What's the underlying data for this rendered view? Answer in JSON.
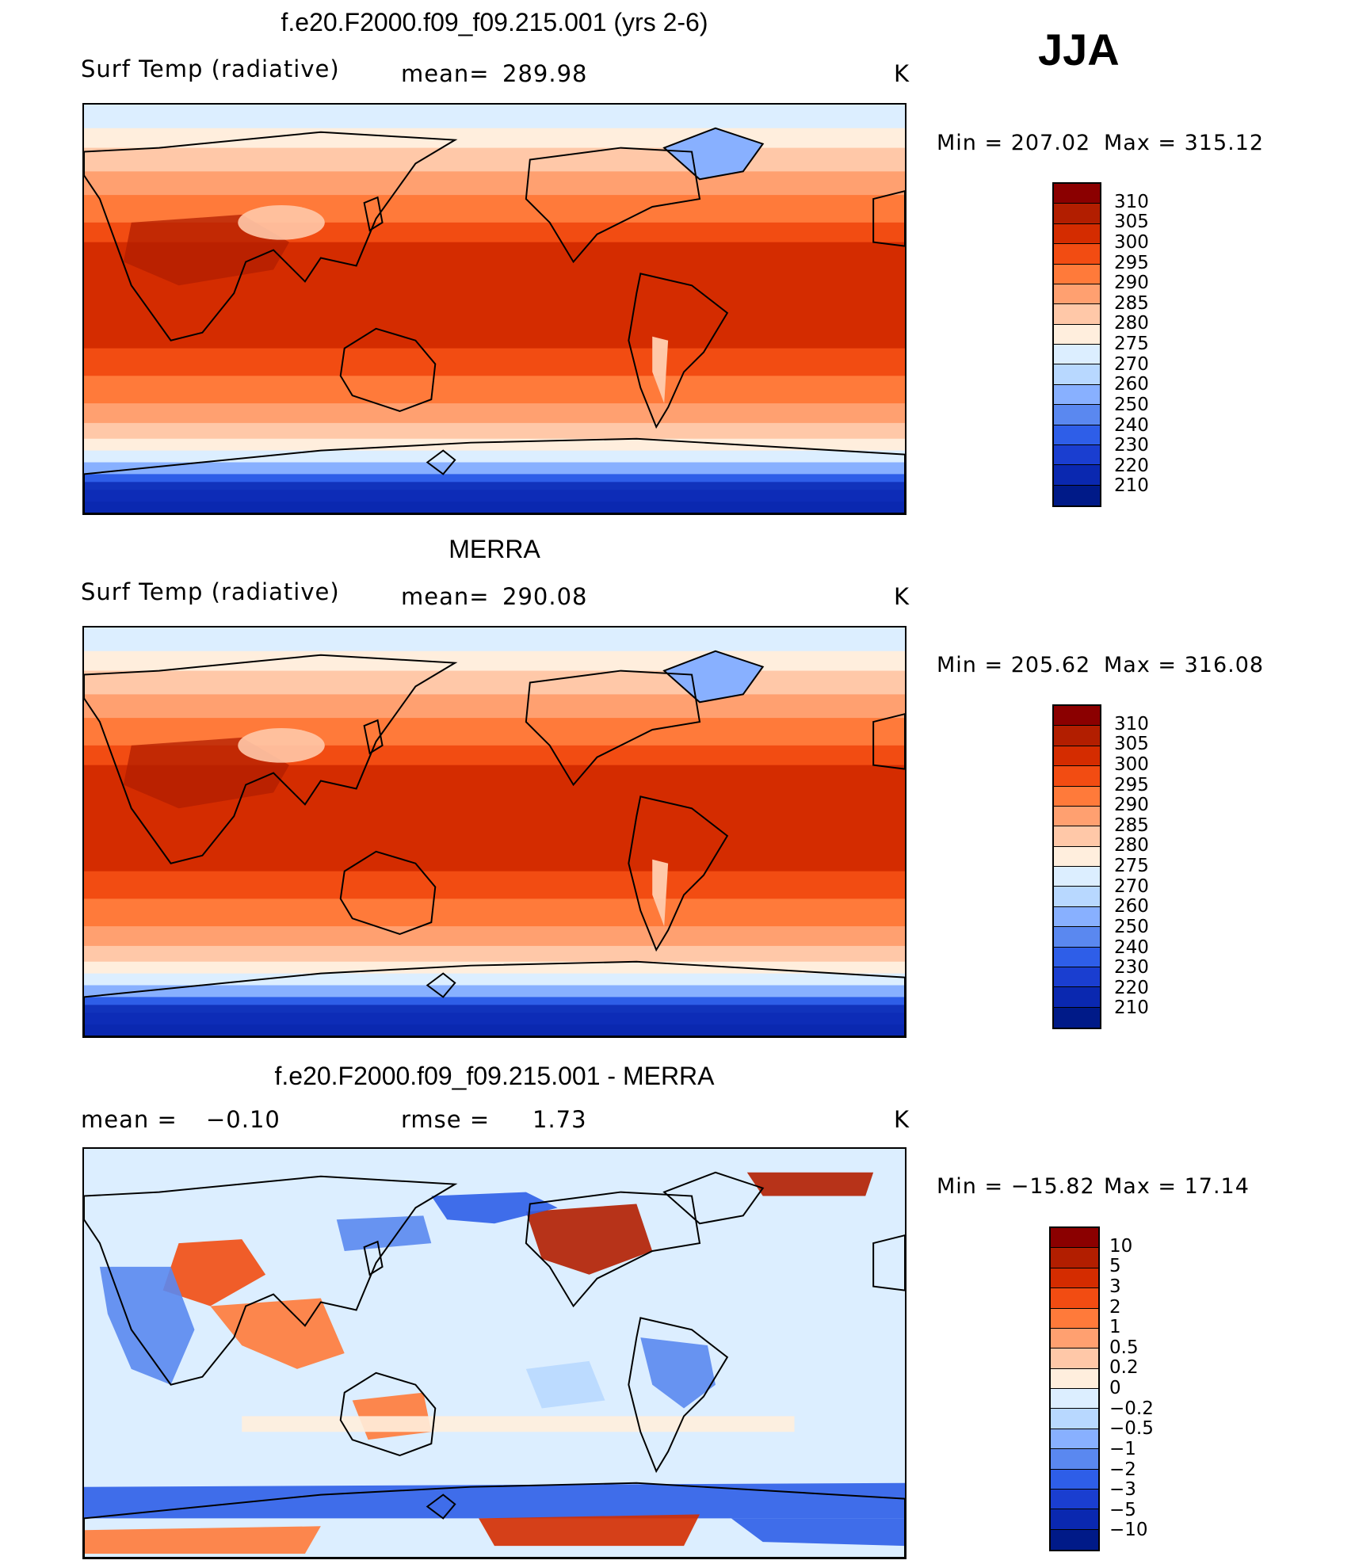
{
  "season": "JJA",
  "chart_data": [
    {
      "type": "heatmap",
      "title": "f.e20.F2000.f09_f09.215.001 (yrs 2-6)",
      "variable": "Surf Temp (radiative)",
      "stat_label": "mean=",
      "stat_value": "289.98",
      "units": "K",
      "min_label": "Min  =  207.02",
      "max_label": "Max  =  315.12",
      "min": 207.02,
      "max": 315.12,
      "levels": [
        "310",
        "305",
        "300",
        "295",
        "290",
        "285",
        "280",
        "275",
        "270",
        "260",
        "250",
        "240",
        "230",
        "220",
        "210"
      ],
      "colors": [
        "#8b0000",
        "#b21e00",
        "#d42c00",
        "#f24c12",
        "#ff7a3a",
        "#ffa070",
        "#ffc8a8",
        "#ffeedd",
        "#dceeff",
        "#b8d8ff",
        "#88b0ff",
        "#5a88f0",
        "#2e5ee8",
        "#1a3ed0",
        "#0a28b0",
        "#001a88"
      ]
    },
    {
      "type": "heatmap",
      "title": "MERRA",
      "variable": "Surf Temp (radiative)",
      "stat_label": "mean=",
      "stat_value": "290.08",
      "units": "K",
      "min_label": "Min  =  205.62",
      "max_label": "Max  =  316.08",
      "min": 205.62,
      "max": 316.08,
      "levels": [
        "310",
        "305",
        "300",
        "295",
        "290",
        "285",
        "280",
        "275",
        "270",
        "260",
        "250",
        "240",
        "230",
        "220",
        "210"
      ],
      "colors": [
        "#8b0000",
        "#b21e00",
        "#d42c00",
        "#f24c12",
        "#ff7a3a",
        "#ffa070",
        "#ffc8a8",
        "#ffeedd",
        "#dceeff",
        "#b8d8ff",
        "#88b0ff",
        "#5a88f0",
        "#2e5ee8",
        "#1a3ed0",
        "#0a28b0",
        "#001a88"
      ]
    },
    {
      "type": "heatmap",
      "title": "f.e20.F2000.f09_f09.215.001 - MERRA",
      "stat_label": "mean  =",
      "stat_value": "−0.10",
      "stat2_label": "rmse  =",
      "stat2_value": "1.73",
      "units": "K",
      "min_label": "Min  =  −15.82",
      "max_label": "Max  =    17.14",
      "min": -15.82,
      "max": 17.14,
      "levels": [
        "10",
        "5",
        "3",
        "2",
        "1",
        "0.5",
        "0.2",
        "0",
        "−0.2",
        "−0.5",
        "−1",
        "−2",
        "−3",
        "−5",
        "−10"
      ],
      "colors": [
        "#8b0000",
        "#b21e00",
        "#d42c00",
        "#f24c12",
        "#ff7a3a",
        "#ffa070",
        "#ffc8a8",
        "#ffeedd",
        "#dceeff",
        "#b8d8ff",
        "#88b0ff",
        "#5a88f0",
        "#2e5ee8",
        "#1a3ed0",
        "#0a28b0",
        "#001a88"
      ]
    }
  ]
}
